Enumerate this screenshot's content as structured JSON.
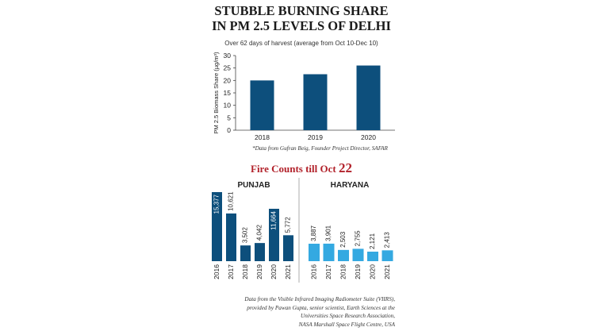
{
  "title_line1": "STUBBLE BURNING SHARE",
  "title_line2": "IN PM 2.5 LEVELS OF DELHI",
  "subtitle": "Over 62 days of harvest (average from Oct 10-Dec 10)",
  "source_note": "*Data from Gufran Beig, Founder Project Director, SAFAR",
  "fire_title_prefix": "Fire Counts till Oct ",
  "fire_title_num": "22",
  "credit_lines": [
    "Data from the Visible Infrared Imaging Radiometer Suite (VIIRS),",
    "provided by Pawan Gupta, senior scientist, Earth Sciences at the",
    "Universities Space Research Association,",
    "NASA Marshall Space Flight Centre, USA"
  ],
  "colors": {
    "pm_bar": "#0d4f7c",
    "punjab_bar": "#0d4f7c",
    "haryana_bar": "#34a9e1",
    "fire_title": "#b2222b"
  },
  "chart_data": [
    {
      "type": "bar",
      "title": "STUBBLE BURNING SHARE IN PM 2.5 LEVELS OF DELHI",
      "subtitle": "Over 62 days of harvest (average from Oct 10-Dec 10)",
      "ylabel": "PM 2.5 Biomass Share (µg/m³)",
      "xlabel": "",
      "categories": [
        "2018",
        "2019",
        "2020"
      ],
      "values": [
        20,
        22.5,
        26
      ],
      "ylim": [
        0,
        30
      ],
      "yticks": [
        0,
        5,
        10,
        15,
        20,
        25,
        30
      ]
    },
    {
      "type": "bar",
      "title": "PUNJAB",
      "categories": [
        "2016",
        "2017",
        "2018",
        "2019",
        "2020",
        "2021"
      ],
      "values": [
        15377,
        10621,
        3502,
        4042,
        11664,
        5772
      ],
      "labels": [
        "15,377",
        "10,621",
        "3,502",
        "4,042",
        "11,664",
        "5,772"
      ]
    },
    {
      "type": "bar",
      "title": "HARYANA",
      "categories": [
        "2016",
        "2017",
        "2018",
        "2019",
        "2020",
        "2021"
      ],
      "values": [
        3887,
        3901,
        2503,
        2755,
        2121,
        2413
      ],
      "labels": [
        "3,887",
        "3,901",
        "2,503",
        "2,755",
        "2,121",
        "2,413"
      ]
    }
  ]
}
